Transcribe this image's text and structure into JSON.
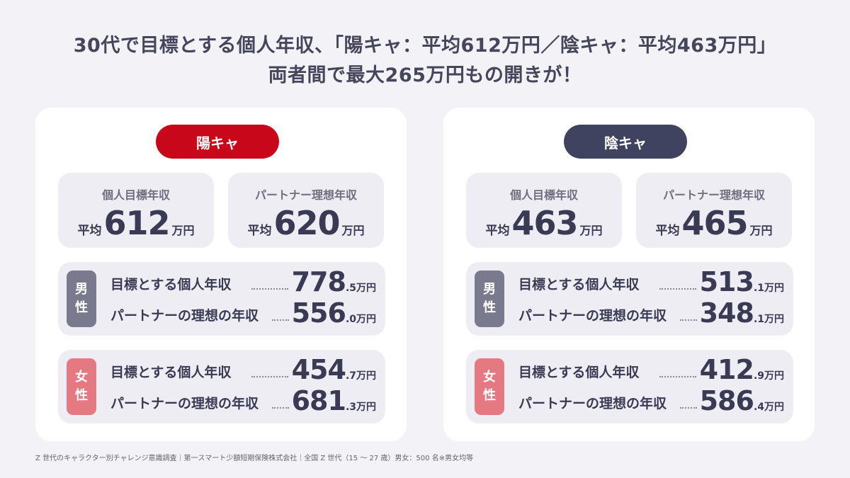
{
  "headline": {
    "line1": "30代で目標とする個人年収、「陽キャ：平均612万円／陰キャ：平均463万円」",
    "line2": "両者間で最大265万円もの開きが！"
  },
  "panels": {
    "left": {
      "badge": "陽キャ",
      "personal": {
        "label": "個人目標年収",
        "prefix": "平均",
        "value": "612",
        "unit": "万円"
      },
      "partner": {
        "label": "パートナー理想年収",
        "prefix": "平均",
        "value": "620",
        "unit": "万円"
      },
      "male": {
        "tag1": "男",
        "tag2": "性",
        "row1": {
          "label": "目標とする個人年収",
          "int": "778",
          "dec": ".5",
          "unit": "万円"
        },
        "row2": {
          "label": "パートナーの理想の年収",
          "int": "556",
          "dec": ".0",
          "unit": "万円"
        }
      },
      "female": {
        "tag1": "女",
        "tag2": "性",
        "row1": {
          "label": "目標とする個人年収",
          "int": "454",
          "dec": ".7",
          "unit": "万円"
        },
        "row2": {
          "label": "パートナーの理想の年収",
          "int": "681",
          "dec": ".3",
          "unit": "万円"
        }
      }
    },
    "right": {
      "badge": "陰キャ",
      "personal": {
        "label": "個人目標年収",
        "prefix": "平均",
        "value": "463",
        "unit": "万円"
      },
      "partner": {
        "label": "パートナー理想年収",
        "prefix": "平均",
        "value": "465",
        "unit": "万円"
      },
      "male": {
        "tag1": "男",
        "tag2": "性",
        "row1": {
          "label": "目標とする個人年収",
          "int": "513",
          "dec": ".1",
          "unit": "万円"
        },
        "row2": {
          "label": "パートナーの理想の年収",
          "int": "348",
          "dec": ".1",
          "unit": "万円"
        }
      },
      "female": {
        "tag1": "女",
        "tag2": "性",
        "row1": {
          "label": "目標とする個人年収",
          "int": "412",
          "dec": ".9",
          "unit": "万円"
        },
        "row2": {
          "label": "パートナーの理想の年収",
          "int": "586",
          "dec": ".4",
          "unit": "万円"
        }
      }
    }
  },
  "colors": {
    "yoki": "#c8081a",
    "inki": "#404360",
    "male": "#7a7a8e",
    "female": "#e57982"
  },
  "footnote": "Z 世代のキャラクター別チャレンジ意識調査｜第一スマート少額短期保険株式会社｜全国 Z 世代（15 〜 27 歳）男女：500 名※男女均等"
}
